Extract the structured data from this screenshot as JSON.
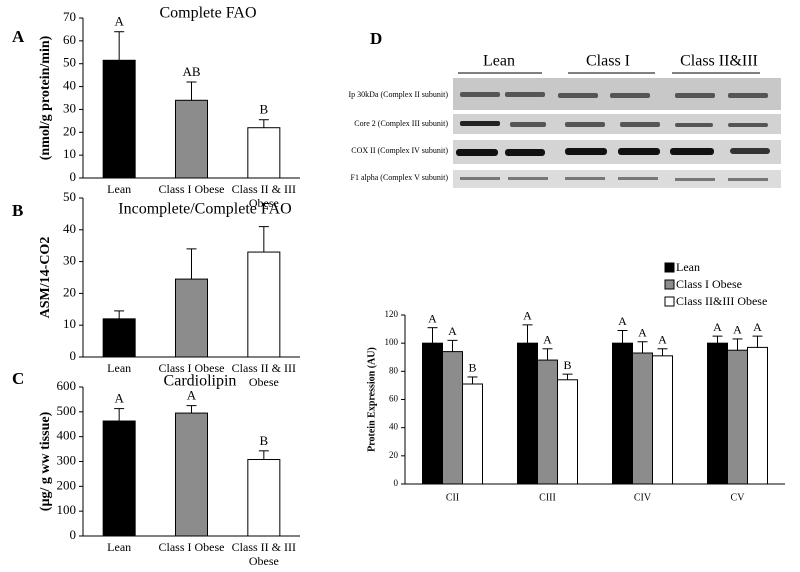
{
  "chart_data": [
    {
      "type": "bar",
      "panel_label": "A",
      "title": "Complete FAO",
      "ylabel": "(nmol/g protein/min)",
      "categories": [
        "Lean",
        "Class I Obese",
        "Class II & III Obese"
      ],
      "values": [
        51.5,
        34,
        22
      ],
      "errors": [
        12.5,
        8,
        3.5
      ],
      "labels": [
        "A",
        "AB",
        "B"
      ],
      "colors": [
        "#000000",
        "#8c8c8c",
        "#ffffff"
      ],
      "ylim": [
        0,
        70
      ],
      "yticks": [
        0,
        10,
        20,
        30,
        40,
        50,
        60,
        70
      ]
    },
    {
      "type": "bar",
      "panel_label": "B",
      "title": "Incomplete/Complete FAO",
      "ylabel": "ASM/14-CO2",
      "categories": [
        "Lean",
        "Class I Obese",
        "Class II & III Obese"
      ],
      "values": [
        12,
        24.5,
        33
      ],
      "errors": [
        2.5,
        9.5,
        8
      ],
      "colors": [
        "#000000",
        "#8c8c8c",
        "#ffffff"
      ],
      "ylim": [
        0,
        50
      ],
      "yticks": [
        0,
        10,
        20,
        30,
        40,
        50
      ]
    },
    {
      "type": "bar",
      "panel_label": "C",
      "title": "Cardiolipin",
      "ylabel": "(µg/ g ww tissue)",
      "categories": [
        "Lean",
        "Class I Obese",
        "Class II & III Obese"
      ],
      "values": [
        463,
        495,
        308
      ],
      "errors": [
        50,
        30,
        35
      ],
      "labels": [
        "A",
        "A",
        "B"
      ],
      "colors": [
        "#000000",
        "#8c8c8c",
        "#ffffff"
      ],
      "ylim": [
        0,
        600
      ],
      "yticks": [
        0,
        100,
        200,
        300,
        400,
        500,
        600
      ]
    },
    {
      "type": "grouped_bar",
      "ylabel": "Protein Expression (AU)",
      "categories": [
        "CII",
        "CIII",
        "CIV",
        "CV"
      ],
      "series": [
        {
          "name": "Lean",
          "color": "#000000",
          "values": [
            100,
            100,
            100,
            100
          ],
          "errors": [
            11,
            13,
            9,
            5
          ],
          "labels": [
            "A",
            "A",
            "A",
            "A"
          ]
        },
        {
          "name": "Class I Obese",
          "color": "#8c8c8c",
          "values": [
            94,
            88,
            93,
            95
          ],
          "errors": [
            8,
            8,
            8,
            8
          ],
          "labels": [
            "A",
            "A",
            "A",
            "A"
          ]
        },
        {
          "name": "Class II&III Obese",
          "color": "#ffffff",
          "values": [
            71,
            74,
            91,
            97
          ],
          "errors": [
            5,
            4,
            5,
            8
          ],
          "labels": [
            "B",
            "B",
            "A",
            "A"
          ]
        }
      ],
      "ylim": [
        0,
        120
      ],
      "yticks": [
        0,
        20,
        40,
        60,
        80,
        100,
        120
      ],
      "legend": "top-right"
    }
  ],
  "blot": {
    "panel_label": "D",
    "groups": [
      "Lean",
      "Class I",
      "Class II&III"
    ],
    "rows": [
      "Ip 30kDa (Complex II subunit)",
      "Core 2 (Complex III subunit)",
      "COX II (Complex IV subunit)",
      "F1 alpha (Complex V subunit)"
    ]
  }
}
